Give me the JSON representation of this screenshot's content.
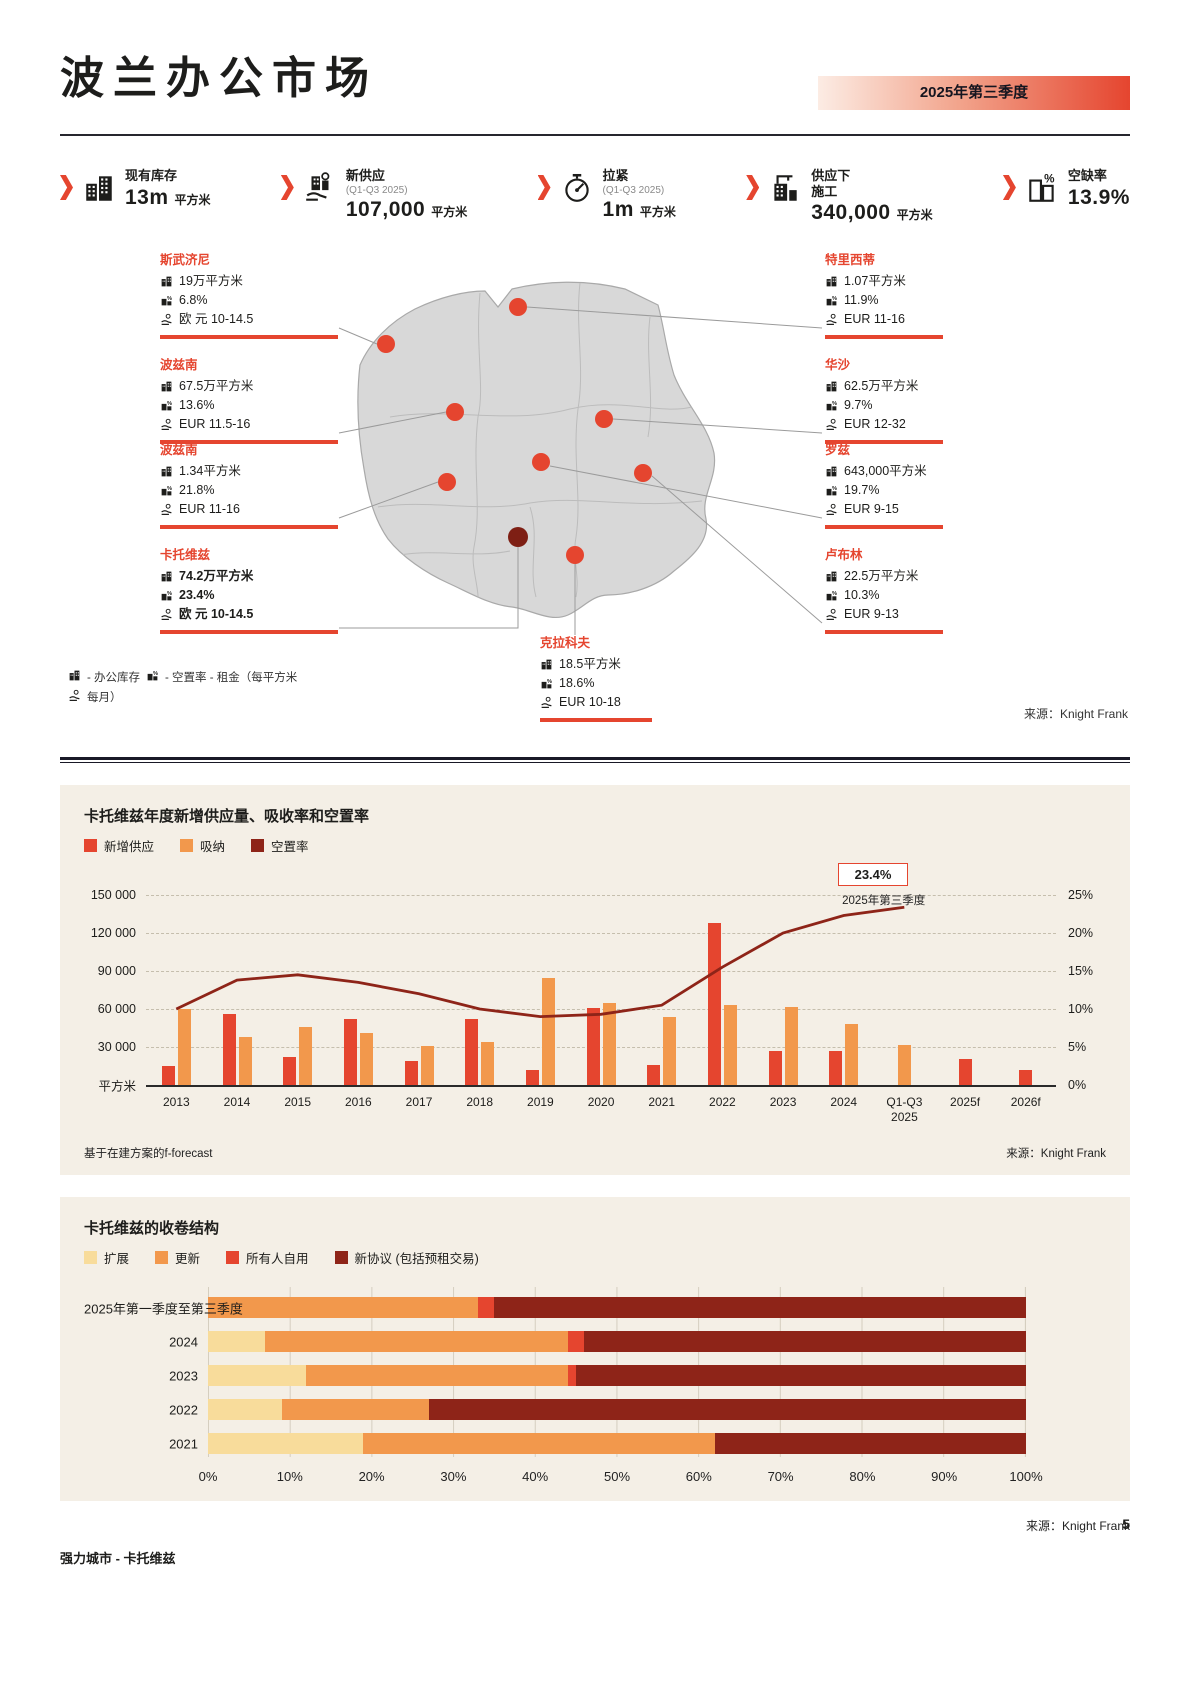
{
  "page": {
    "title": "波兰办公市场",
    "period_badge": "2025年第三季度",
    "footer_left": "强力城市 - 卡托维兹",
    "page_number": "5"
  },
  "kpis": [
    {
      "icon": "office-stock-icon",
      "label": "现有库存",
      "label2": "",
      "sub": "",
      "value": "13m",
      "unit": "平方米"
    },
    {
      "icon": "new-supply-icon",
      "label": "新供应",
      "label2": "",
      "sub": "(Q1-Q3 2025)",
      "value": "107,000",
      "unit": "平方米"
    },
    {
      "icon": "gauge-icon",
      "label": "拉紧",
      "label2": "",
      "sub": "(Q1-Q3 2025)",
      "value": "1m",
      "unit": "平方米"
    },
    {
      "icon": "under-construction-icon",
      "label": "供应下",
      "label2": "施工",
      "sub": "",
      "value": "340,000",
      "unit": "平方米"
    },
    {
      "icon": "vacancy-rate-icon",
      "label": "空缺率",
      "label2": "",
      "sub": "",
      "value": "13.9%",
      "unit": ""
    }
  ],
  "map": {
    "icons": {
      "stock": "office-stock-icon",
      "vacancy": "vacancy-rate-icon",
      "rent": "rent-hand-icon"
    },
    "cities": [
      {
        "id": "szczecin",
        "name": "斯武济尼",
        "stock": "19万平方米",
        "vacancy": "6.8%",
        "rent": "欧 元 10-14.5",
        "emphasis": false
      },
      {
        "id": "poznan",
        "name": "波兹南",
        "stock": "67.5万平方米",
        "vacancy": "13.6%",
        "rent": "EUR 11.5-16",
        "emphasis": false
      },
      {
        "id": "wroclaw",
        "name": "波兹南",
        "stock": "1.34平方米",
        "vacancy": "21.8%",
        "rent": "EUR 11-16",
        "emphasis": false
      },
      {
        "id": "katowice",
        "name": "卡托维兹",
        "stock": "74.2万平方米",
        "vacancy": "23.4%",
        "rent": "欧 元 10-14.5",
        "emphasis": true
      },
      {
        "id": "tricity",
        "name": "特里西蒂",
        "stock": "1.07平方米",
        "vacancy": "11.9%",
        "rent": "EUR 11-16",
        "emphasis": false
      },
      {
        "id": "warsaw",
        "name": "华沙",
        "stock": "62.5万平方米",
        "vacancy": "9.7%",
        "rent": "EUR 12-32",
        "emphasis": false
      },
      {
        "id": "lodz",
        "name": "罗兹",
        "stock": "643,000平方米",
        "vacancy": "19.7%",
        "rent": "EUR 9-15",
        "emphasis": false
      },
      {
        "id": "lublin",
        "name": "卢布林",
        "stock": "22.5万平方米",
        "vacancy": "10.3%",
        "rent": "EUR 9-13",
        "emphasis": false
      },
      {
        "id": "krakow",
        "name": "克拉科夫",
        "stock": "18.5平方米",
        "vacancy": "18.6%",
        "rent": "EUR 10-18",
        "emphasis": false
      }
    ],
    "legend_stock": "- 办公库存",
    "legend_vacancy": "- 空置率 - 租金（每平方米",
    "legend_rent": "每月）",
    "source": "来源：Knight Frank"
  },
  "colors": {
    "accent_red": "#E5452F",
    "orange": "#F2984C",
    "dark_red": "#8E2418",
    "pale_yellow": "#F8DC9B",
    "panel_cream": "#F4EFE6"
  },
  "chart_data": [
    {
      "type": "bar",
      "title": "卡托维兹年度新增供应量、吸收率和空置率",
      "categories": [
        "2013",
        "2014",
        "2015",
        "2016",
        "2017",
        "2018",
        "2019",
        "2020",
        "2021",
        "2022",
        "2023",
        "2024",
        "Q1-Q3 2025",
        "2025f",
        "2026f"
      ],
      "series": [
        {
          "name": "新增供应",
          "color": "#E5452F",
          "values": [
            15000,
            56000,
            22000,
            52000,
            19000,
            52000,
            12000,
            61000,
            16000,
            128000,
            27000,
            27000,
            null,
            21000,
            12000
          ]
        },
        {
          "name": "吸纳",
          "color": "#F2984C",
          "values": [
            60000,
            38000,
            46000,
            41000,
            31000,
            34000,
            85000,
            65000,
            54000,
            63000,
            62000,
            48000,
            32000,
            null,
            null
          ]
        }
      ],
      "line_series": {
        "name": "空置率",
        "color": "#8E2418",
        "axis": "right",
        "values": [
          10,
          13.8,
          14.5,
          13.5,
          12,
          10,
          9,
          9.3,
          10.5,
          15.5,
          20,
          22.3,
          23.4,
          null,
          null
        ]
      },
      "ylim_left": [
        0,
        150000
      ],
      "yticks_left": [
        "150 000",
        "120 000",
        "90 000",
        "60 000",
        "30 000"
      ],
      "y_axis_unit": "平方米",
      "ylim_right": [
        0,
        25
      ],
      "yticks_right": [
        "25%",
        "20%",
        "15%",
        "10%",
        "5%",
        "0%"
      ],
      "grid": "dashed-horizontal",
      "legend_position": "top-left",
      "annotation": {
        "value": "23.4%",
        "label": "2025年第三季度"
      },
      "footnote": "基于在建方案的f-forecast",
      "source": "来源：Knight Frank"
    },
    {
      "type": "stacked-bar-horizontal",
      "title": "卡托维兹的收卷结构",
      "categories": [
        "2025年第一季度至第三季度",
        "2024",
        "2023",
        "2022",
        "2021"
      ],
      "series": [
        {
          "name": "扩展",
          "color": "#F8DC9B",
          "values": [
            0,
            7,
            12,
            9,
            19
          ]
        },
        {
          "name": "更新",
          "color": "#F2984C",
          "values": [
            33,
            37,
            32,
            18,
            43
          ]
        },
        {
          "name": "所有人自用",
          "color": "#E5452F",
          "values": [
            2,
            2,
            1,
            0,
            0
          ]
        },
        {
          "name": "新协议 (包括预租交易)",
          "color": "#8E2418",
          "values": [
            65,
            54,
            55,
            73,
            38
          ]
        }
      ],
      "xlim": [
        0,
        100
      ],
      "xticks": [
        "0%",
        "10%",
        "20%",
        "30%",
        "40%",
        "50%",
        "60%",
        "70%",
        "80%",
        "90%",
        "100%"
      ],
      "grid": "vertical",
      "legend_position": "top-left",
      "source": "来源：Knight Frank"
    }
  ]
}
